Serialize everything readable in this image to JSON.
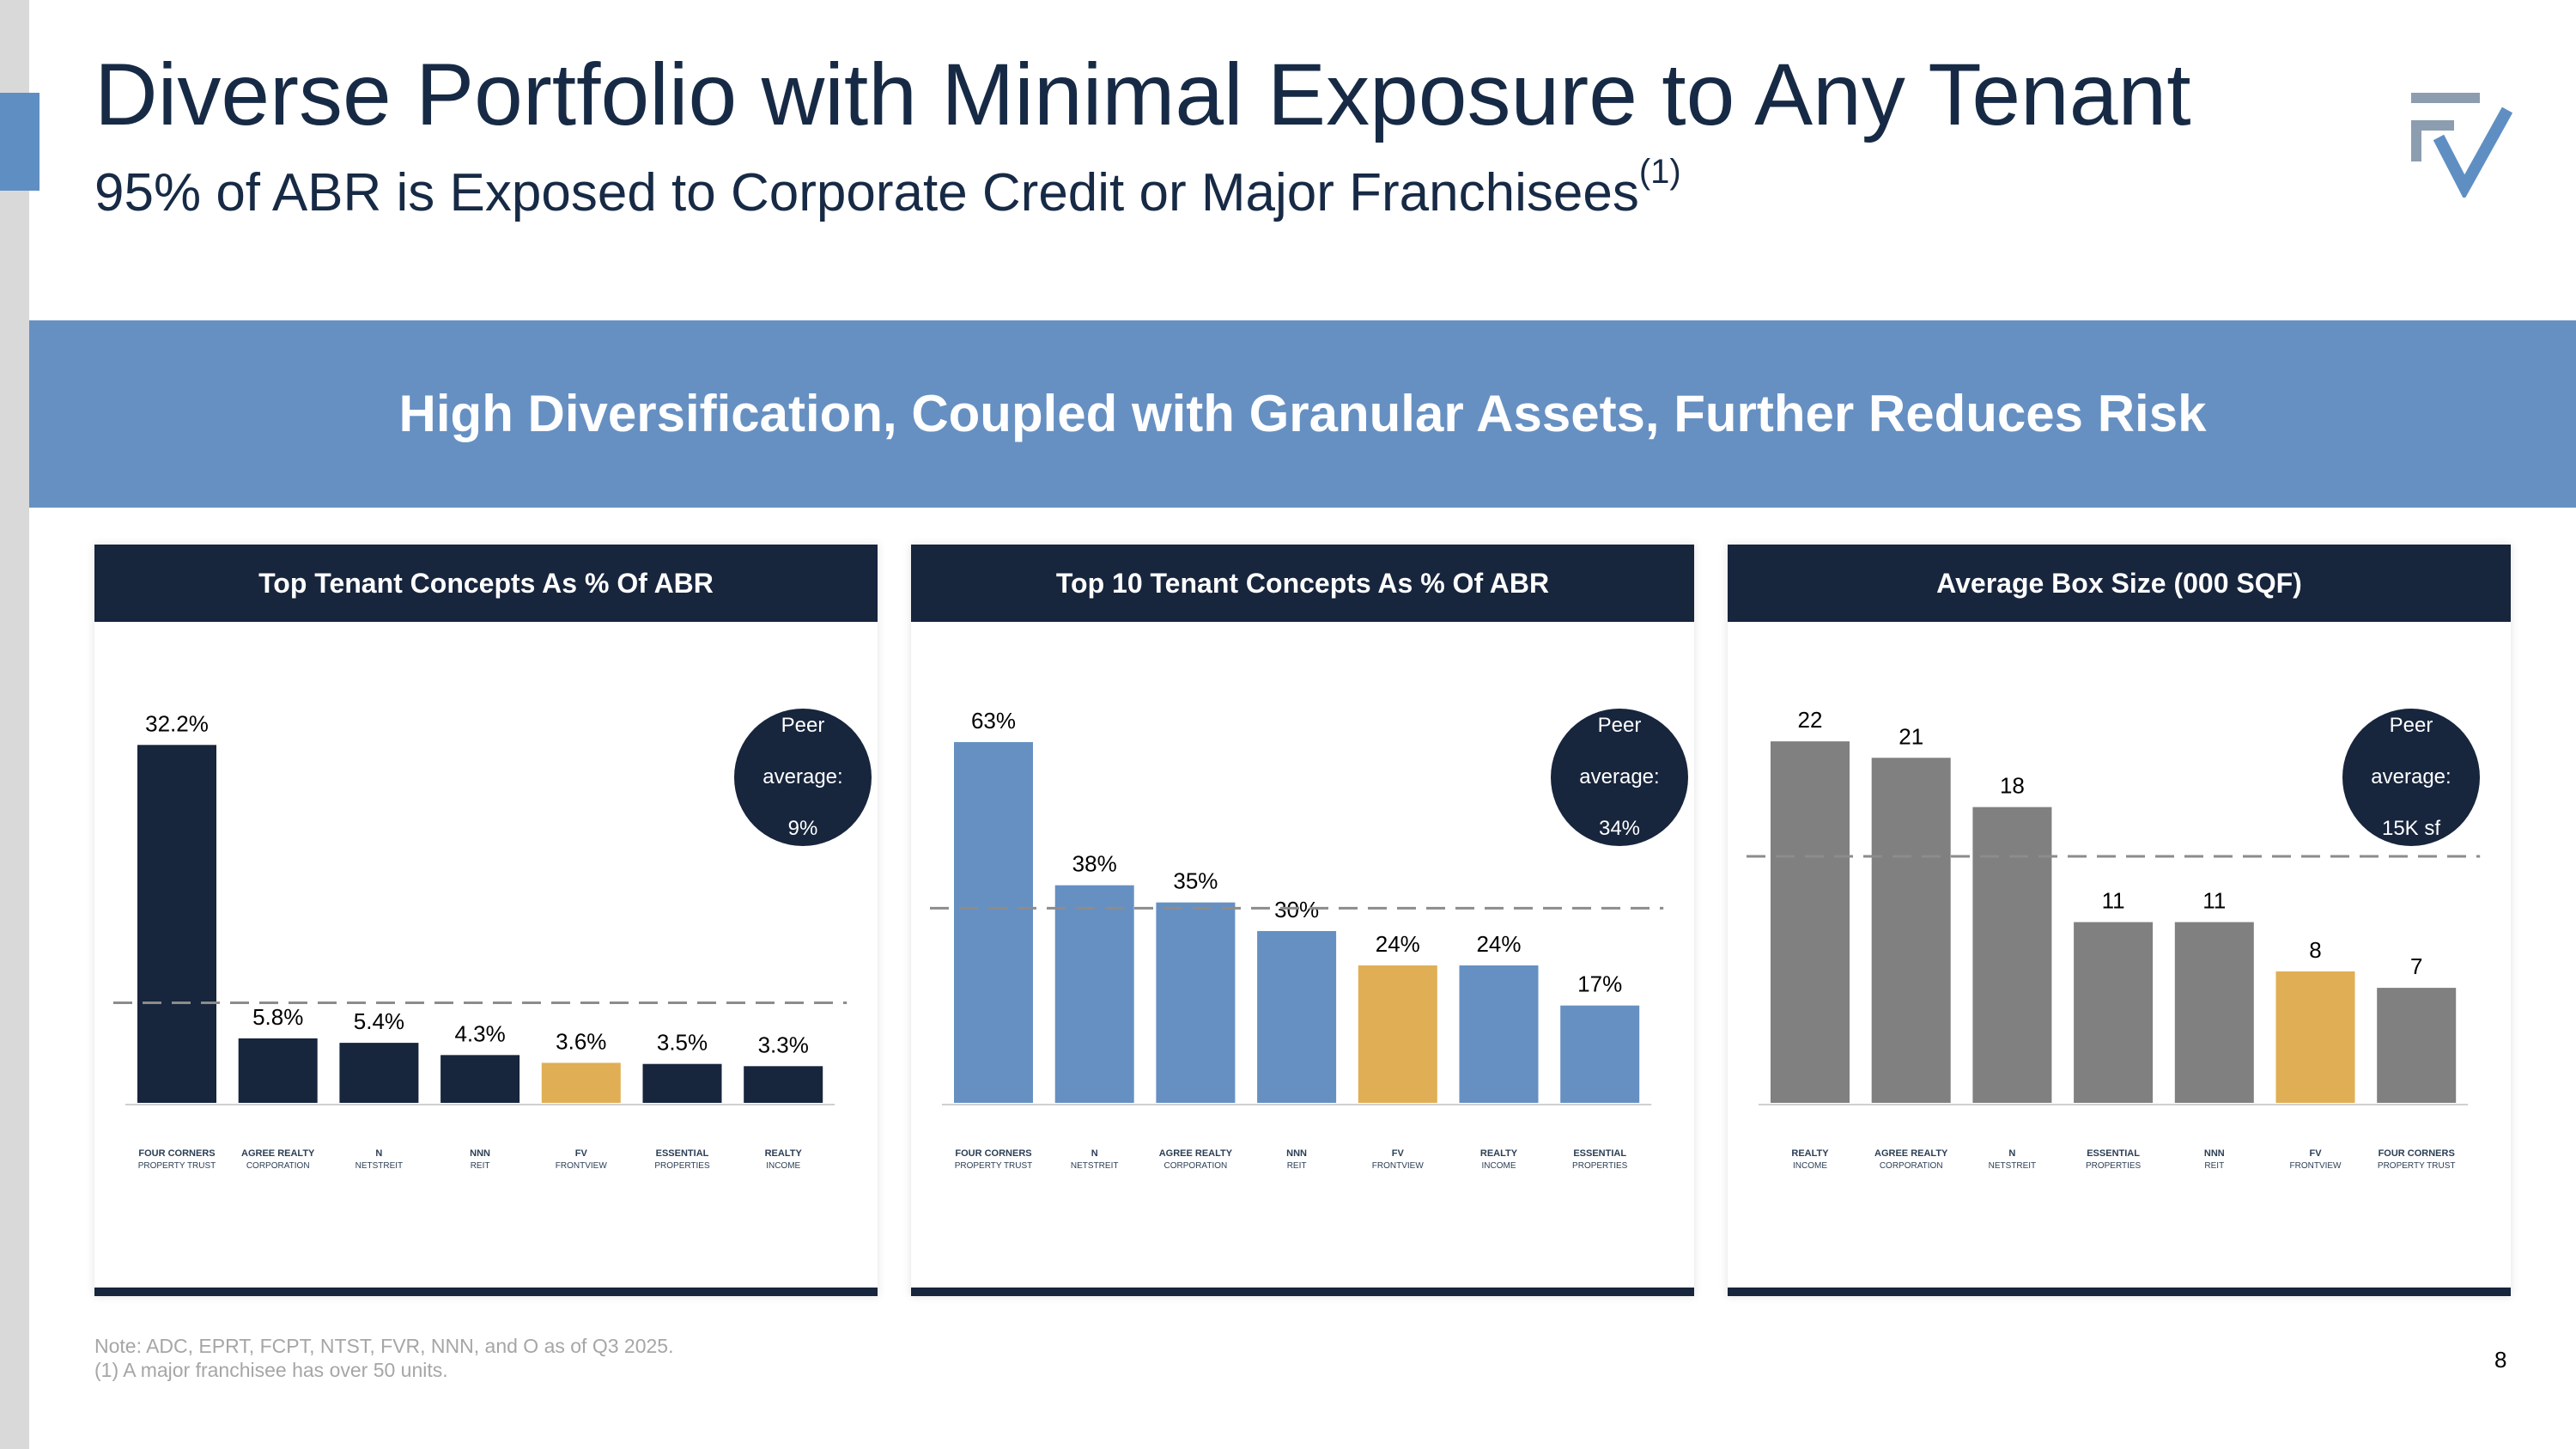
{
  "header": {
    "title": "Diverse Portfolio with Minimal Exposure to Any Tenant",
    "subtitle": "95% of ABR is Exposed to Corporate Credit or Major Franchisees",
    "subtitle_footnote": "(1)"
  },
  "banner": {
    "text": "High Diversification, Coupled with Granular Assets, Further Reduces Risk"
  },
  "colors": {
    "navy": "#17253d",
    "blue": "#6690c2",
    "gray": "#808080",
    "gold": "#e0ae54",
    "peer_line": "#8c8c8c"
  },
  "chart_data": [
    {
      "type": "bar",
      "title": "Top Tenant Concepts As % Of ABR",
      "categories": [
        "FOUR CORNERS PROPERTY TRUST",
        "AGREE REALTY CORPORATION",
        "NETSTREIT",
        "NNN REIT",
        "FRONTVIEW",
        "ESSENTIAL PROPERTIES",
        "REALTY INCOME"
      ],
      "values": [
        32.2,
        5.8,
        5.4,
        4.3,
        3.6,
        3.5,
        3.3
      ],
      "labels": [
        "32.2%",
        "5.8%",
        "5.4%",
        "4.3%",
        "3.6%",
        "3.5%",
        "3.3%"
      ],
      "highlight_index": 4,
      "bar_color": "navy",
      "peer_average": 9,
      "peer_label": [
        "Peer",
        "average:",
        "9%"
      ],
      "ylim": [
        0,
        34
      ]
    },
    {
      "type": "bar",
      "title": "Top 10 Tenant Concepts As % Of ABR",
      "categories": [
        "FOUR CORNERS PROPERTY TRUST",
        "NETSTREIT",
        "AGREE REALTY CORPORATION",
        "NNN REIT",
        "FRONTVIEW",
        "REALTY INCOME",
        "ESSENTIAL PROPERTIES"
      ],
      "values": [
        63,
        38,
        35,
        30,
        24,
        24,
        17
      ],
      "labels": [
        "63%",
        "38%",
        "35%",
        "30%",
        "24%",
        "24%",
        "17%"
      ],
      "highlight_index": 4,
      "bar_color": "blue",
      "peer_average": 34,
      "peer_label": [
        "Peer",
        "average:",
        "34%"
      ],
      "ylim": [
        0,
        66
      ]
    },
    {
      "type": "bar",
      "title": "Average Box Size (000 SQF)",
      "categories": [
        "REALTY INCOME",
        "AGREE REALTY CORPORATION",
        "NETSTREIT",
        "ESSENTIAL PROPERTIES",
        "NNN REIT",
        "FRONTVIEW",
        "FOUR CORNERS PROPERTY TRUST"
      ],
      "values": [
        22,
        21,
        18,
        11,
        11,
        8,
        7
      ],
      "labels": [
        "22",
        "21",
        "18",
        "11",
        "11",
        "8",
        "7"
      ],
      "highlight_index": 5,
      "bar_color": "gray",
      "peer_average": 15,
      "peer_label": [
        "Peer",
        "average:",
        "15K sf"
      ],
      "ylim": [
        0,
        23
      ]
    }
  ],
  "logo_text": {
    "FOUR CORNERS PROPERTY TRUST": [
      "FOUR CORNERS",
      "PROPERTY TRUST"
    ],
    "AGREE REALTY CORPORATION": [
      "AGREE REALTY",
      "CORPORATION"
    ],
    "NETSTREIT": [
      "N",
      "NETSTREIT"
    ],
    "NNN REIT": [
      "NNN",
      "REIT"
    ],
    "FRONTVIEW": [
      "FV",
      "FRONTVIEW"
    ],
    "ESSENTIAL PROPERTIES": [
      "ESSENTIAL",
      "PROPERTIES"
    ],
    "REALTY INCOME": [
      "REALTY",
      "INCOME"
    ]
  },
  "footer": {
    "note_line1": "Note: ADC, EPRT, FCPT, NTST, FVR, NNN, and O as of Q3 2025.",
    "note_line2": "(1) A major franchisee has over 50 units.",
    "page_number": "8"
  }
}
